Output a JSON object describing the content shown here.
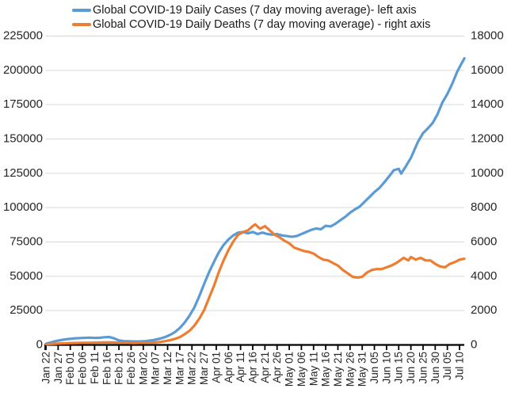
{
  "page": {
    "background": "#ffffff"
  },
  "colors": {
    "cases_line": "#5B9BD5",
    "deaths_line": "#ED7D31",
    "gridline": "#D6D9DC",
    "axis_line": "#000000",
    "tick_label": "#262626"
  },
  "chart_data": {
    "type": "line",
    "title": "",
    "xlabel": "",
    "ylabel_left": "",
    "ylabel_right": "",
    "grid": "horizontal",
    "legend_position": "top-left",
    "x_tick_labels": [
      "Jan 22",
      "Jan 27",
      "Feb 01",
      "Feb 06",
      "Feb 11",
      "Feb 16",
      "Feb 21",
      "Feb 26",
      "Mar 02",
      "Mar 07",
      "Mar 12",
      "Mar 17",
      "Mar 22",
      "Mar 27",
      "Apr 01",
      "Apr 06",
      "Apr 11",
      "Apr 16",
      "Apr 21",
      "Apr 26",
      "May 01",
      "May 06",
      "May 11",
      "May 16",
      "May 21",
      "May 26",
      "May 31",
      "Jun 05",
      "Jun 10",
      "Jun 15",
      "Jun 20",
      "Jun 25",
      "Jun 30",
      "Jul 05",
      "Jul 10"
    ],
    "y_left": {
      "min": 0,
      "max": 225000,
      "ticks": [
        0,
        25000,
        50000,
        75000,
        100000,
        125000,
        150000,
        175000,
        200000,
        225000
      ]
    },
    "y_right": {
      "min": 0,
      "max": 18000,
      "ticks": [
        0,
        2000,
        4000,
        6000,
        8000,
        10000,
        12000,
        14000,
        16000,
        18000
      ]
    },
    "series": [
      {
        "name": "Global COVID-19 Daily Cases (7 day moving average)- left axis",
        "axis": "left",
        "color": "#5B9BD5",
        "points": [
          [
            "Jan 22",
            500
          ],
          [
            "Jan 24",
            1500
          ],
          [
            "Jan 26",
            2500
          ],
          [
            "Jan 28",
            3200
          ],
          [
            "Jan 31",
            4000
          ],
          [
            "Feb 03",
            4500
          ],
          [
            "Feb 06",
            4800
          ],
          [
            "Feb 09",
            5000
          ],
          [
            "Feb 11",
            4800
          ],
          [
            "Feb 13",
            4900
          ],
          [
            "Feb 15",
            5300
          ],
          [
            "Feb 17",
            5500
          ],
          [
            "Feb 19",
            4500
          ],
          [
            "Feb 21",
            3000
          ],
          [
            "Feb 23",
            2500
          ],
          [
            "Feb 26",
            2300
          ],
          [
            "Feb 29",
            2200
          ],
          [
            "Mar 03",
            2500
          ],
          [
            "Mar 06",
            3200
          ],
          [
            "Mar 09",
            4300
          ],
          [
            "Mar 11",
            5500
          ],
          [
            "Mar 13",
            7000
          ],
          [
            "Mar 15",
            9000
          ],
          [
            "Mar 17",
            12000
          ],
          [
            "Mar 19",
            16000
          ],
          [
            "Mar 21",
            21000
          ],
          [
            "Mar 23",
            27000
          ],
          [
            "Mar 25",
            35000
          ],
          [
            "Mar 27",
            44000
          ],
          [
            "Mar 29",
            52500
          ],
          [
            "Mar 31",
            60000
          ],
          [
            "Apr 02",
            67000
          ],
          [
            "Apr 04",
            72500
          ],
          [
            "Apr 06",
            76500
          ],
          [
            "Apr 08",
            79500
          ],
          [
            "Apr 10",
            81500
          ],
          [
            "Apr 12",
            82000
          ],
          [
            "Apr 14",
            81000
          ],
          [
            "Apr 16",
            82000
          ],
          [
            "Apr 18",
            80500
          ],
          [
            "Apr 20",
            81500
          ],
          [
            "Apr 22",
            80500
          ],
          [
            "Apr 24",
            80000
          ],
          [
            "Apr 26",
            80500
          ],
          [
            "Apr 28",
            79500
          ],
          [
            "Apr 30",
            79000
          ],
          [
            "May 02",
            78500
          ],
          [
            "May 04",
            79000
          ],
          [
            "May 06",
            80500
          ],
          [
            "May 08",
            82000
          ],
          [
            "May 10",
            83500
          ],
          [
            "May 12",
            84500
          ],
          [
            "May 14",
            84000
          ],
          [
            "May 16",
            86500
          ],
          [
            "May 18",
            86000
          ],
          [
            "May 20",
            88000
          ],
          [
            "May 22",
            90500
          ],
          [
            "May 24",
            93000
          ],
          [
            "May 26",
            96000
          ],
          [
            "May 28",
            98500
          ],
          [
            "May 30",
            100500
          ],
          [
            "Jun 01",
            104000
          ],
          [
            "Jun 03",
            107500
          ],
          [
            "Jun 05",
            111000
          ],
          [
            "Jun 07",
            114000
          ],
          [
            "Jun 09",
            118000
          ],
          [
            "Jun 11",
            122500
          ],
          [
            "Jun 13",
            127000
          ],
          [
            "Jun 15",
            128000
          ],
          [
            "Jun 16",
            124500
          ],
          [
            "Jun 18",
            130000
          ],
          [
            "Jun 20",
            136000
          ],
          [
            "Jun 22",
            144000
          ],
          [
            "Jun 23",
            148000
          ],
          [
            "Jun 25",
            154000
          ],
          [
            "Jun 27",
            157500
          ],
          [
            "Jun 29",
            161500
          ],
          [
            "Jul 01",
            168000
          ],
          [
            "Jul 03",
            176500
          ],
          [
            "Jul 05",
            182500
          ],
          [
            "Jul 07",
            190000
          ],
          [
            "Jul 09",
            198500
          ],
          [
            "Jul 10",
            202000
          ],
          [
            "Jul 12",
            208500
          ]
        ]
      },
      {
        "name": "Global COVID-19 Daily Deaths (7 day moving average) - right axis",
        "axis": "right",
        "color": "#ED7D31",
        "points": [
          [
            "Jan 22",
            15
          ],
          [
            "Jan 25",
            40
          ],
          [
            "Jan 28",
            60
          ],
          [
            "Jan 31",
            80
          ],
          [
            "Feb 03",
            90
          ],
          [
            "Feb 06",
            95
          ],
          [
            "Feb 09",
            100
          ],
          [
            "Feb 12",
            110
          ],
          [
            "Feb 15",
            125
          ],
          [
            "Feb 18",
            120
          ],
          [
            "Feb 21",
            110
          ],
          [
            "Feb 24",
            100
          ],
          [
            "Feb 27",
            90
          ],
          [
            "Mar 01",
            95
          ],
          [
            "Mar 04",
            105
          ],
          [
            "Mar 07",
            120
          ],
          [
            "Mar 09",
            150
          ],
          [
            "Mar 11",
            200
          ],
          [
            "Mar 13",
            250
          ],
          [
            "Mar 15",
            330
          ],
          [
            "Mar 17",
            430
          ],
          [
            "Mar 19",
            600
          ],
          [
            "Mar 21",
            800
          ],
          [
            "Mar 23",
            1100
          ],
          [
            "Mar 25",
            1500
          ],
          [
            "Mar 27",
            2000
          ],
          [
            "Mar 29",
            2700
          ],
          [
            "Mar 31",
            3400
          ],
          [
            "Apr 02",
            4200
          ],
          [
            "Apr 04",
            4900
          ],
          [
            "Apr 06",
            5500
          ],
          [
            "Apr 08",
            6000
          ],
          [
            "Apr 10",
            6400
          ],
          [
            "Apr 12",
            6550
          ],
          [
            "Apr 14",
            6650
          ],
          [
            "Apr 16",
            6900
          ],
          [
            "Apr 17",
            7000
          ],
          [
            "Apr 19",
            6750
          ],
          [
            "Apr 21",
            6900
          ],
          [
            "Apr 23",
            6650
          ],
          [
            "Apr 25",
            6400
          ],
          [
            "Apr 27",
            6250
          ],
          [
            "Apr 29",
            6050
          ],
          [
            "May 01",
            5900
          ],
          [
            "May 03",
            5650
          ],
          [
            "May 05",
            5550
          ],
          [
            "May 07",
            5450
          ],
          [
            "May 09",
            5400
          ],
          [
            "May 11",
            5300
          ],
          [
            "May 13",
            5100
          ],
          [
            "May 15",
            4950
          ],
          [
            "May 17",
            4900
          ],
          [
            "May 19",
            4750
          ],
          [
            "May 21",
            4600
          ],
          [
            "May 23",
            4350
          ],
          [
            "May 25",
            4150
          ],
          [
            "May 27",
            3950
          ],
          [
            "May 29",
            3900
          ],
          [
            "May 31",
            3950
          ],
          [
            "Jun 02",
            4200
          ],
          [
            "Jun 04",
            4350
          ],
          [
            "Jun 06",
            4400
          ],
          [
            "Jun 08",
            4400
          ],
          [
            "Jun 10",
            4500
          ],
          [
            "Jun 12",
            4600
          ],
          [
            "Jun 14",
            4750
          ],
          [
            "Jun 16",
            4950
          ],
          [
            "Jun 17",
            5050
          ],
          [
            "Jun 19",
            4900
          ],
          [
            "Jun 20",
            5100
          ],
          [
            "Jun 22",
            4950
          ],
          [
            "Jun 24",
            5050
          ],
          [
            "Jun 26",
            4900
          ],
          [
            "Jun 28",
            4900
          ],
          [
            "Jun 30",
            4700
          ],
          [
            "Jul 02",
            4550
          ],
          [
            "Jul 04",
            4500
          ],
          [
            "Jul 06",
            4700
          ],
          [
            "Jul 08",
            4800
          ],
          [
            "Jul 10",
            4950
          ],
          [
            "Jul 12",
            5000
          ]
        ]
      }
    ]
  }
}
